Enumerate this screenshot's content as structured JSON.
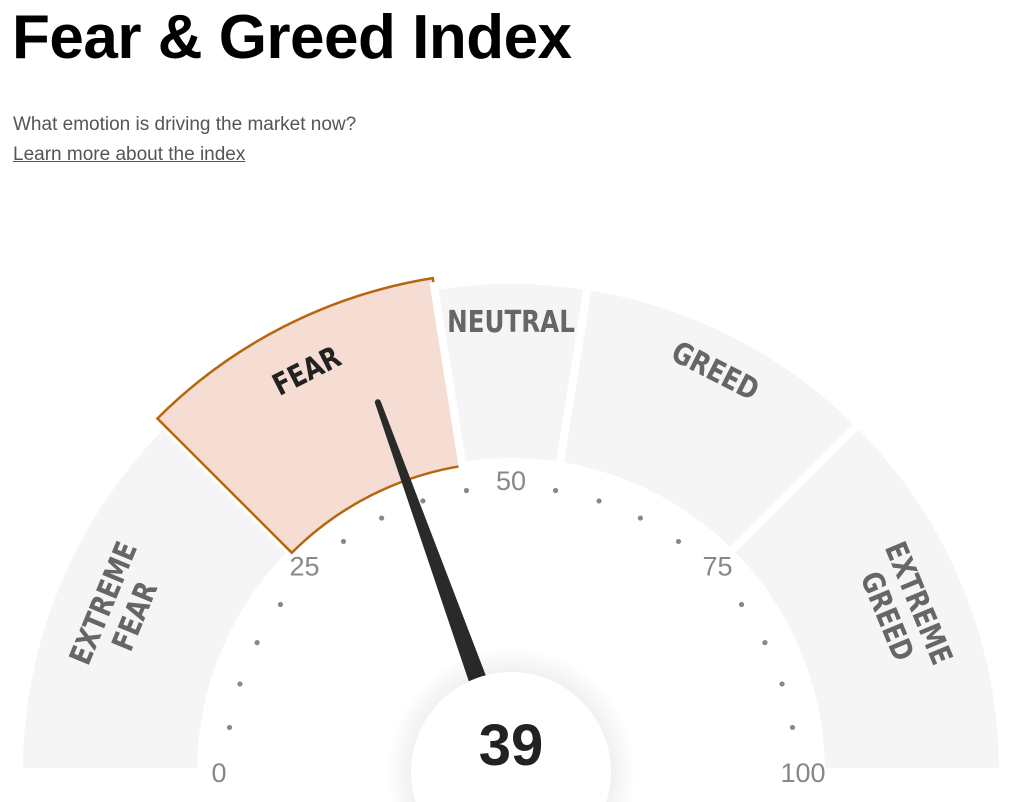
{
  "header": {
    "title": "Fear & Greed Index",
    "subtitle": "What emotion is driving the market now?",
    "learn_more": "Learn more about the index"
  },
  "gauge": {
    "value": 39,
    "value_label": "39",
    "min": 0,
    "max": 100,
    "active_segment": "fear",
    "segments": [
      {
        "id": "extreme-fear",
        "lines": [
          "EXTREME",
          "FEAR"
        ],
        "from": 0,
        "to": 25
      },
      {
        "id": "fear",
        "lines": [
          "FEAR"
        ],
        "from": 25,
        "to": 45
      },
      {
        "id": "neutral",
        "lines": [
          "NEUTRAL"
        ],
        "from": 45,
        "to": 55
      },
      {
        "id": "greed",
        "lines": [
          "GREED"
        ],
        "from": 55,
        "to": 75
      },
      {
        "id": "extreme-greed",
        "lines": [
          "EXTREME",
          "GREED"
        ],
        "from": 75,
        "to": 100
      }
    ],
    "tick_labels": [
      "0",
      "25",
      "50",
      "75",
      "100"
    ],
    "colors": {
      "segment": "#f5f5f5",
      "segment_text": "#666666",
      "active_fill": "#f5ddd3",
      "active_stroke": "#b8650f",
      "active_text": "#222222",
      "needle": "#2a2a2a",
      "tick": "#888888"
    }
  }
}
